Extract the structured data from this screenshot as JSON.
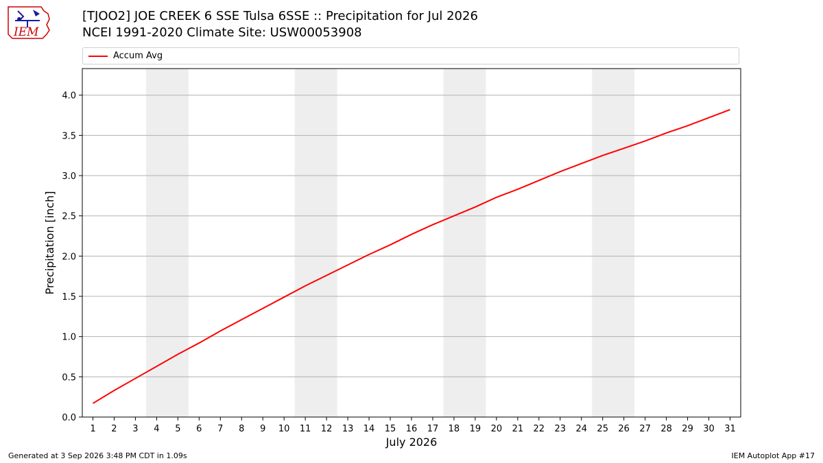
{
  "header": {
    "title_line1": "[TJOO2] JOE CREEK 6 SSE Tulsa 6SSE :: Precipitation for Jul 2026",
    "title_line2": "NCEI 1991-2020 Climate Site: USW00053908"
  },
  "logo": {
    "text": "IEM",
    "icon": "iem-logo-icon"
  },
  "legend": {
    "entries": [
      {
        "label": "Accum Avg",
        "color": "#ff0000"
      }
    ]
  },
  "footer": {
    "generated": "Generated at 3 Sep 2026 3:48 PM CDT in 1.09s",
    "app": "IEM Autoplot App #17"
  },
  "chart_data": {
    "type": "line",
    "xlabel": "July 2026",
    "ylabel": "Precipitation [inch]",
    "x": [
      1,
      2,
      3,
      4,
      5,
      6,
      7,
      8,
      9,
      10,
      11,
      12,
      13,
      14,
      15,
      16,
      17,
      18,
      19,
      20,
      21,
      22,
      23,
      24,
      25,
      26,
      27,
      28,
      29,
      30,
      31
    ],
    "xlim": [
      0.5,
      31.5
    ],
    "ylim": [
      0,
      4.33
    ],
    "yticks": [
      0.0,
      0.5,
      1.0,
      1.5,
      2.0,
      2.5,
      3.0,
      3.5,
      4.0
    ],
    "grid": "horizontal",
    "weekend_shading": [
      [
        3.5,
        5.5
      ],
      [
        10.5,
        12.5
      ],
      [
        17.5,
        19.5
      ],
      [
        24.5,
        26.5
      ]
    ],
    "legend_placement": "top",
    "series": [
      {
        "name": "Accum Avg",
        "color": "#ff0000",
        "values": [
          0.17,
          0.33,
          0.48,
          0.63,
          0.78,
          0.92,
          1.07,
          1.21,
          1.35,
          1.49,
          1.63,
          1.76,
          1.89,
          2.02,
          2.14,
          2.27,
          2.39,
          2.5,
          2.61,
          2.73,
          2.83,
          2.94,
          3.05,
          3.15,
          3.25,
          3.34,
          3.43,
          3.53,
          3.62,
          3.72,
          3.82
        ]
      }
    ]
  }
}
